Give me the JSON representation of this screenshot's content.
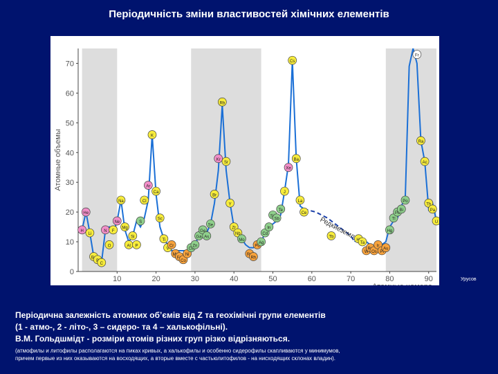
{
  "slide": {
    "title": "Періодичність зміни властивостей хімічних елементів",
    "credit": "Урусов",
    "caption": [
      " Періодична залежність атомних об’ємів від Z та геохімічні групи елементів",
      "(1 - атмо-, 2 - літо-, 3 – сидеро- та 4 – халькофільні).",
      "В.М. Гольдшмідт - розміри атомів різних груп різко відрізняються."
    ],
    "note": [
      "(атмофилы и литофилы располагаются на пиках кривых, а халькофилы и особенно сидерофилы скапливаются у минимумов,",
      "причем первые из них оказываются на восходящих, а вторые вместе с частьюлитофилов - на нисходящих склонах владин)."
    ]
  },
  "colors": {
    "background": "#00136e",
    "line": "#1a6fd6",
    "shade": "#dddddd",
    "groups": [
      "#f28ec8",
      "#f7ec3c",
      "#f7a23c",
      "#8fd08c"
    ]
  },
  "chart_data": {
    "type": "line",
    "xlabel": "Атомные номера",
    "ylabel": "Атомные объемы",
    "xlim": [
      0,
      92
    ],
    "ylim": [
      0,
      75
    ],
    "xticks": [
      "10",
      "20",
      "30",
      "40",
      "50",
      "60",
      "70",
      "80",
      "90"
    ],
    "yticks": [
      "0",
      "10",
      "20",
      "30",
      "40",
      "50",
      "60",
      "70"
    ],
    "shaded_ranges": [
      [
        1,
        10
      ],
      [
        29,
        47
      ],
      [
        79,
        92
      ]
    ],
    "dashed_label": "Редкиеземли",
    "legend": [
      "1",
      "2",
      "3",
      "4"
    ],
    "series": [
      {
        "x": [
          1,
          2,
          3,
          4,
          5,
          6,
          7,
          8,
          9,
          10,
          11,
          12,
          13,
          14,
          15,
          16,
          17,
          18,
          19,
          20,
          21,
          22,
          23,
          24,
          25,
          26,
          27,
          28,
          29,
          30,
          31,
          32,
          33,
          34,
          35,
          36,
          37,
          38,
          39,
          40,
          41,
          42,
          43,
          44,
          45,
          46,
          47,
          48,
          49,
          50,
          51,
          52,
          53,
          54,
          55,
          56,
          57,
          58
        ],
        "y": [
          14,
          20,
          13,
          5,
          4,
          3,
          14,
          15,
          13,
          17,
          24,
          14,
          10,
          12,
          17,
          15,
          18,
          24,
          46,
          26,
          15,
          11,
          9,
          7,
          7,
          7,
          7,
          7,
          8,
          9,
          12,
          14,
          13,
          16,
          23,
          34,
          56,
          34,
          23,
          15,
          12,
          11,
          9,
          8,
          8,
          9,
          10,
          13,
          15,
          16,
          17,
          19,
          27,
          36,
          71,
          38,
          22,
          21
        ]
      },
      {
        "x": [
          71,
          72,
          73,
          74,
          75,
          76,
          77,
          78,
          79,
          80,
          81,
          82,
          83,
          84,
          85,
          86
        ],
        "y": [
          10,
          12,
          11,
          10,
          9,
          8,
          7,
          9,
          10,
          15,
          17,
          18,
          22,
          25,
          69,
          75
        ]
      },
      {
        "x": [
          86,
          87,
          88,
          89,
          90,
          91,
          92
        ],
        "y": [
          75,
          70,
          44,
          37,
          21,
          23,
          17
        ]
      }
    ],
    "rare_earth_dashed": {
      "x": [
        58,
        61,
        64,
        67,
        70,
        71
      ],
      "y": [
        21,
        20,
        18,
        15,
        12,
        10
      ]
    },
    "elements": [
      {
        "s": "H",
        "z": 1,
        "v": 14,
        "g": 1
      },
      {
        "s": "He",
        "z": 2,
        "v": 20,
        "g": 1
      },
      {
        "s": "Li",
        "z": 3,
        "v": 13,
        "g": 2
      },
      {
        "s": "Be",
        "z": 4,
        "v": 5,
        "g": 2
      },
      {
        "s": "B",
        "z": 5,
        "v": 4,
        "g": 2
      },
      {
        "s": "C",
        "z": 6,
        "v": 3,
        "g": 2
      },
      {
        "s": "N",
        "z": 7,
        "v": 14,
        "g": 1
      },
      {
        "s": "F",
        "z": 9,
        "v": 14,
        "g": 2
      },
      {
        "s": "O",
        "z": 8,
        "v": 9,
        "g": 2
      },
      {
        "s": "Ne",
        "z": 10,
        "v": 17,
        "g": 1
      },
      {
        "s": "Na",
        "z": 11,
        "v": 24,
        "g": 2
      },
      {
        "s": "Mg",
        "z": 12,
        "v": 15,
        "g": 2
      },
      {
        "s": "Al",
        "z": 13,
        "v": 9,
        "g": 2
      },
      {
        "s": "Si",
        "z": 14,
        "v": 12,
        "g": 2
      },
      {
        "s": "P",
        "z": 15,
        "v": 9,
        "g": 2
      },
      {
        "s": "S",
        "z": 16,
        "v": 17,
        "g": 4
      },
      {
        "s": "Cl",
        "z": 17,
        "v": 24,
        "g": 2
      },
      {
        "s": "Ar",
        "z": 18,
        "v": 29,
        "g": 1
      },
      {
        "s": "K",
        "z": 19,
        "v": 46,
        "g": 2
      },
      {
        "s": "Ca",
        "z": 20,
        "v": 27,
        "g": 2
      },
      {
        "s": "Sc",
        "z": 21,
        "v": 18,
        "g": 2
      },
      {
        "s": "Ti",
        "z": 22,
        "v": 11,
        "g": 2
      },
      {
        "s": "V",
        "z": 23,
        "v": 8,
        "g": 2
      },
      {
        "s": "Cr",
        "z": 24,
        "v": 9,
        "g": 3
      },
      {
        "s": "Mn",
        "z": 25,
        "v": 6,
        "g": 3
      },
      {
        "s": "Fe",
        "z": 26,
        "v": 5,
        "g": 3
      },
      {
        "s": "Co",
        "z": 27,
        "v": 4,
        "g": 3
      },
      {
        "s": "Ni",
        "z": 28,
        "v": 6,
        "g": 3
      },
      {
        "s": "Cu",
        "z": 29,
        "v": 8,
        "g": 4
      },
      {
        "s": "Zn",
        "z": 30,
        "v": 9,
        "g": 4
      },
      {
        "s": "Ga",
        "z": 31,
        "v": 12,
        "g": 4
      },
      {
        "s": "Ge",
        "z": 32,
        "v": 14,
        "g": 4
      },
      {
        "s": "As",
        "z": 33,
        "v": 12,
        "g": 4
      },
      {
        "s": "Se",
        "z": 34,
        "v": 16,
        "g": 4
      },
      {
        "s": "Br",
        "z": 35,
        "v": 26,
        "g": 2
      },
      {
        "s": "Kr",
        "z": 36,
        "v": 38,
        "g": 1
      },
      {
        "s": "Rb",
        "z": 37,
        "v": 57,
        "g": 2
      },
      {
        "s": "Sr",
        "z": 38,
        "v": 37,
        "g": 2
      },
      {
        "s": "Y",
        "z": 39,
        "v": 23,
        "g": 2
      },
      {
        "s": "Zr",
        "z": 40,
        "v": 15,
        "g": 2
      },
      {
        "s": "Nb",
        "z": 41,
        "v": 13,
        "g": 2
      },
      {
        "s": "Mo",
        "z": 42,
        "v": 11,
        "g": 4
      },
      {
        "s": "Ru",
        "z": 44,
        "v": 6,
        "g": 3
      },
      {
        "s": "Rh",
        "z": 45,
        "v": 5,
        "g": 3
      },
      {
        "s": "Pd",
        "z": 46,
        "v": 9,
        "g": 3
      },
      {
        "s": "Ag",
        "z": 47,
        "v": 10,
        "g": 4
      },
      {
        "s": "Cd",
        "z": 48,
        "v": 13,
        "g": 4
      },
      {
        "s": "In",
        "z": 49,
        "v": 15,
        "g": 4
      },
      {
        "s": "Sn",
        "z": 50,
        "v": 19,
        "g": 4
      },
      {
        "s": "Sb",
        "z": 51,
        "v": 18,
        "g": 4
      },
      {
        "s": "Te",
        "z": 52,
        "v": 21,
        "g": 4
      },
      {
        "s": "J",
        "z": 53,
        "v": 27,
        "g": 2
      },
      {
        "s": "Xe",
        "z": 54,
        "v": 35,
        "g": 1
      },
      {
        "s": "Cs",
        "z": 55,
        "v": 71,
        "g": 2
      },
      {
        "s": "Ba",
        "z": 56,
        "v": 38,
        "g": 2
      },
      {
        "s": "La",
        "z": 57,
        "v": 24,
        "g": 2
      },
      {
        "s": "Ce",
        "z": 58,
        "v": 20,
        "g": 2
      },
      {
        "s": "Tb",
        "z": 65,
        "v": 12,
        "g": 2
      },
      {
        "s": "Hf",
        "z": 72,
        "v": 11,
        "g": 2
      },
      {
        "s": "Ta",
        "z": 73,
        "v": 10,
        "g": 2
      },
      {
        "s": "W",
        "z": 74,
        "v": 7,
        "g": 3
      },
      {
        "s": "Re",
        "z": 75,
        "v": 8,
        "g": 3
      },
      {
        "s": "Os",
        "z": 76,
        "v": 7,
        "g": 3
      },
      {
        "s": "Ir",
        "z": 77,
        "v": 9,
        "g": 3
      },
      {
        "s": "Pt",
        "z": 78,
        "v": 7,
        "g": 3
      },
      {
        "s": "Au",
        "z": 79,
        "v": 8,
        "g": 3
      },
      {
        "s": "Hg",
        "z": 80,
        "v": 14,
        "g": 4
      },
      {
        "s": "Tl",
        "z": 81,
        "v": 18,
        "g": 4
      },
      {
        "s": "Pb",
        "z": 82,
        "v": 20,
        "g": 4
      },
      {
        "s": "Bi",
        "z": 83,
        "v": 21,
        "g": 4
      },
      {
        "s": "Po",
        "z": 84,
        "v": 24,
        "g": 4
      },
      {
        "s": "Fr",
        "z": 87,
        "v": 73,
        "g": 0
      },
      {
        "s": "Ra",
        "z": 88,
        "v": 44,
        "g": 2
      },
      {
        "s": "Ac",
        "z": 89,
        "v": 37,
        "g": 2
      },
      {
        "s": "Th",
        "z": 90,
        "v": 23,
        "g": 2
      },
      {
        "s": "Pa",
        "z": 91,
        "v": 21,
        "g": 2
      },
      {
        "s": "U",
        "z": 92,
        "v": 17,
        "g": 2
      }
    ]
  }
}
